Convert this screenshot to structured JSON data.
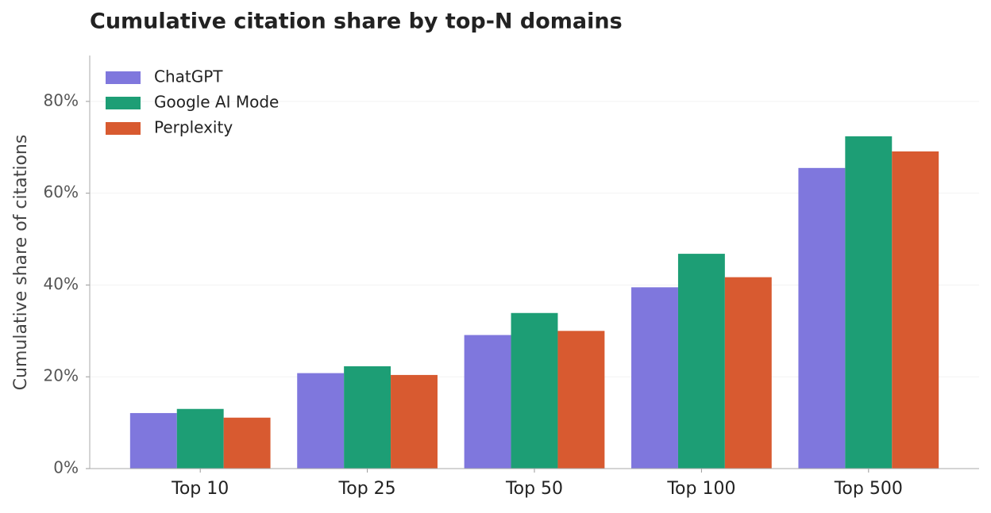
{
  "chart_data": {
    "type": "bar",
    "title": "Cumulative citation share by top-N domains",
    "y_label": "Cumulative share of citations",
    "categories": [
      "Top 10",
      "Top 25",
      "Top 50",
      "Top 100",
      "Top 500"
    ],
    "series": [
      {
        "name": "ChatGPT",
        "color": "#7f77dd",
        "values": [
          12.1,
          20.8,
          29.1,
          39.5,
          65.5
        ]
      },
      {
        "name": "Google AI Mode",
        "color": "#1d9e75",
        "values": [
          13.0,
          22.3,
          33.9,
          46.8,
          72.4
        ]
      },
      {
        "name": "Perplexity",
        "color": "#d85a30",
        "values": [
          11.1,
          20.4,
          30.0,
          41.7,
          69.1
        ]
      }
    ],
    "ylim": [
      0,
      90
    ],
    "yticks": [
      {
        "value": 0,
        "label": "0%"
      },
      {
        "value": 20,
        "label": "20%"
      },
      {
        "value": 40,
        "label": "40%"
      },
      {
        "value": 60,
        "label": "60%"
      },
      {
        "value": 80,
        "label": "80%"
      }
    ],
    "grid": true,
    "legend": "upper left"
  }
}
